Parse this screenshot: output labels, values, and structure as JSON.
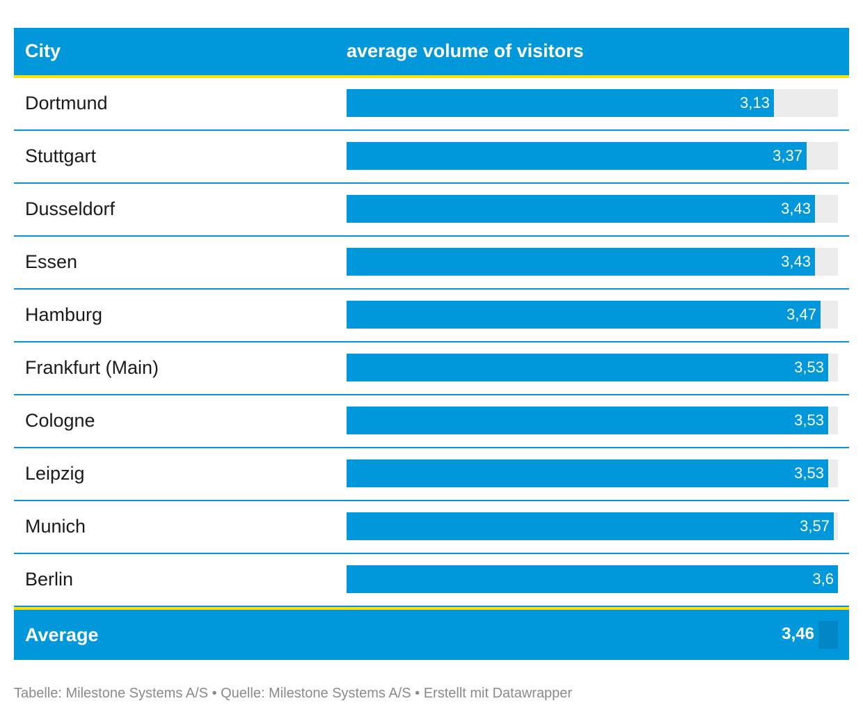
{
  "header": {
    "col_city": "City",
    "col_value": "average volume of visitors"
  },
  "rows": [
    {
      "city": "Dortmund",
      "value": 3.13,
      "label": "3,13"
    },
    {
      "city": "Stuttgart",
      "value": 3.37,
      "label": "3,37"
    },
    {
      "city": "Dusseldorf",
      "value": 3.43,
      "label": "3,43"
    },
    {
      "city": "Essen",
      "value": 3.43,
      "label": "3,43"
    },
    {
      "city": "Hamburg",
      "value": 3.47,
      "label": "3,47"
    },
    {
      "city": "Frankfurt (Main)",
      "value": 3.53,
      "label": "3,53"
    },
    {
      "city": "Cologne",
      "value": 3.53,
      "label": "3,53"
    },
    {
      "city": "Leipzig",
      "value": 3.53,
      "label": "3,53"
    },
    {
      "city": "Munich",
      "value": 3.57,
      "label": "3,57"
    },
    {
      "city": "Berlin",
      "value": 3.6,
      "label": "3,6"
    }
  ],
  "average": {
    "label": "Average",
    "value": 3.46,
    "value_label": "3,46"
  },
  "footer": "Tabelle: Milestone Systems A/S • Quelle: Milestone Systems A/S • Erstellt mit Datawrapper",
  "colors": {
    "bar": "#0098db",
    "track": "#ececec",
    "accent": "#ffe100"
  },
  "chart_data": {
    "type": "table",
    "categories": [
      "Dortmund",
      "Stuttgart",
      "Dusseldorf",
      "Essen",
      "Hamburg",
      "Frankfurt (Main)",
      "Cologne",
      "Leipzig",
      "Munich",
      "Berlin"
    ],
    "values": [
      3.13,
      3.37,
      3.43,
      3.43,
      3.47,
      3.53,
      3.53,
      3.53,
      3.57,
      3.6
    ],
    "xlim": [
      0,
      3.6
    ]
  }
}
